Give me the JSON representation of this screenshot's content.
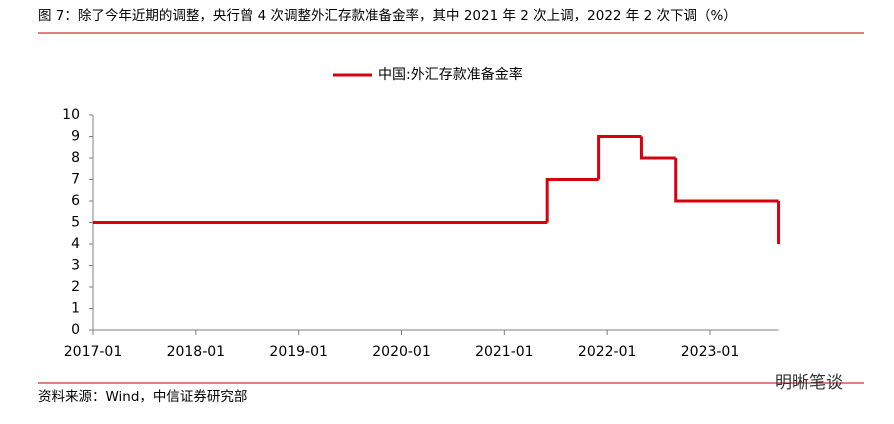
{
  "chart_data": {
    "type": "line",
    "drawstyle": "steps-post",
    "title": "图 7：除了今年近期的调整，央行曾 4 次调整外汇存款准备金率，其中 2021 年 2 次上调，2022 年 2 次下调（%）",
    "source": "资料来源：Wind，中信证券研究部",
    "watermark": "明晰笔谈",
    "x": [
      "2017-01",
      "2021-06",
      "2021-12",
      "2022-05",
      "2022-09",
      "2023-09"
    ],
    "series": [
      {
        "name": "中国:外汇存款准备金率",
        "color": "#d7000f",
        "values": [
          5,
          7,
          9,
          8,
          6,
          4
        ]
      }
    ],
    "xlim": [
      "2017-01",
      "2023-09"
    ],
    "xticks": [
      "2017-01",
      "2018-01",
      "2019-01",
      "2020-01",
      "2021-01",
      "2022-01",
      "2023-01"
    ],
    "ylim": [
      0,
      10
    ],
    "yticks": [
      0,
      1,
      2,
      3,
      4,
      5,
      6,
      7,
      8,
      9,
      10
    ],
    "grid": false,
    "legend": "top"
  }
}
